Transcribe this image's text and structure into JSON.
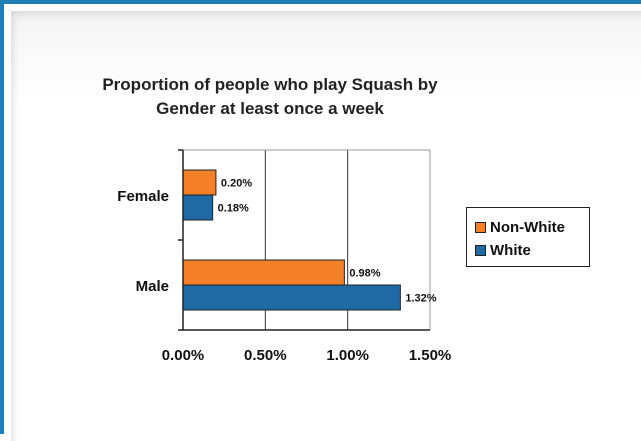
{
  "chart_data": {
    "type": "bar",
    "orientation": "horizontal",
    "title_lines": [
      "Proportion of people who play Squash by",
      "Gender at least once a week"
    ],
    "categories": [
      "Female",
      "Male"
    ],
    "series": [
      {
        "name": "Non-White",
        "values": [
          0.2,
          0.98
        ],
        "labels": [
          "0.20%",
          "0.98%"
        ],
        "color": "#f4802a"
      },
      {
        "name": "White",
        "values": [
          0.18,
          1.32
        ],
        "labels": [
          "0.18%",
          "1.32%"
        ],
        "color": "#1f6aa5"
      }
    ],
    "xlim": [
      0,
      1.5
    ],
    "x_ticks": [
      0,
      0.5,
      1.0,
      1.5
    ],
    "x_tick_labels": [
      "0.00%",
      "0.50%",
      "1.00%",
      "1.50%"
    ],
    "grid": "vertical",
    "legend_position": "right"
  },
  "colors": {
    "frame": "#1f7fb6",
    "non_white": "#f4802a",
    "white": "#1f6aa5"
  }
}
